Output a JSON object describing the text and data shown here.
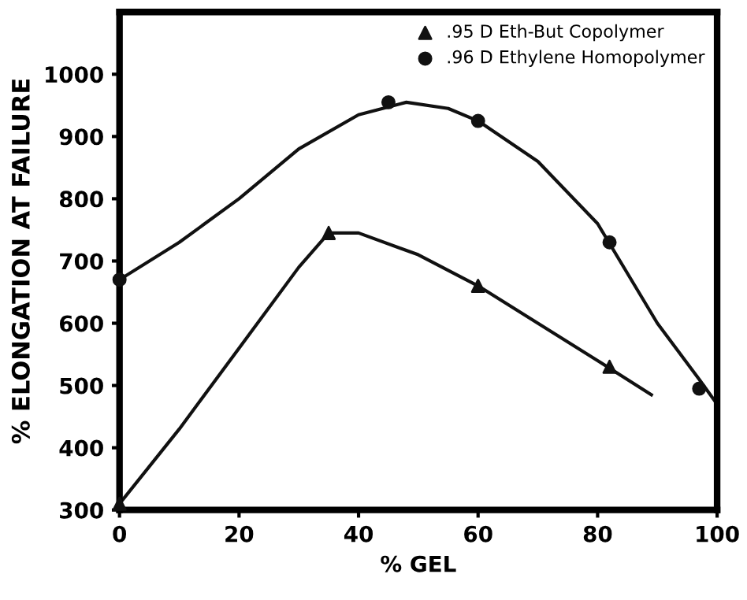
{
  "chart_data": {
    "type": "scatter",
    "xlabel": "% GEL",
    "ylabel": "% ELONGATION AT FAILURE",
    "xlim": [
      0,
      100
    ],
    "ylim": [
      300,
      1100
    ],
    "xticks": [
      0,
      20,
      40,
      60,
      80,
      100
    ],
    "yticks": [
      300,
      400,
      500,
      600,
      700,
      800,
      900,
      1000
    ],
    "grid": false,
    "legend": "top right",
    "series": [
      {
        "name": ".95 D Eth-But Copolymer",
        "marker": "triangle",
        "color": "#111111",
        "x": [
          0,
          35,
          60,
          82
        ],
        "values": [
          310,
          745,
          660,
          530
        ]
      },
      {
        "name": ".96 D Ethylene Homopolymer",
        "marker": "circle",
        "color": "#111111",
        "x": [
          0,
          45,
          60,
          82,
          97
        ],
        "values": [
          670,
          955,
          925,
          730,
          495
        ]
      },
      {
        "type": "line",
        "marker": "none",
        "color": "#111111",
        "x": [
          0,
          10,
          20,
          30,
          35,
          40,
          50,
          60,
          70,
          80,
          89
        ],
        "values": [
          310,
          430,
          560,
          690,
          745,
          745,
          710,
          660,
          600,
          540,
          485
        ]
      },
      {
        "type": "line",
        "marker": "none",
        "color": "#111111",
        "x": [
          0,
          10,
          20,
          30,
          40,
          48,
          55,
          60,
          70,
          80,
          90,
          97,
          100
        ],
        "values": [
          670,
          730,
          800,
          880,
          935,
          955,
          945,
          925,
          860,
          760,
          600,
          510,
          470
        ]
      }
    ]
  }
}
